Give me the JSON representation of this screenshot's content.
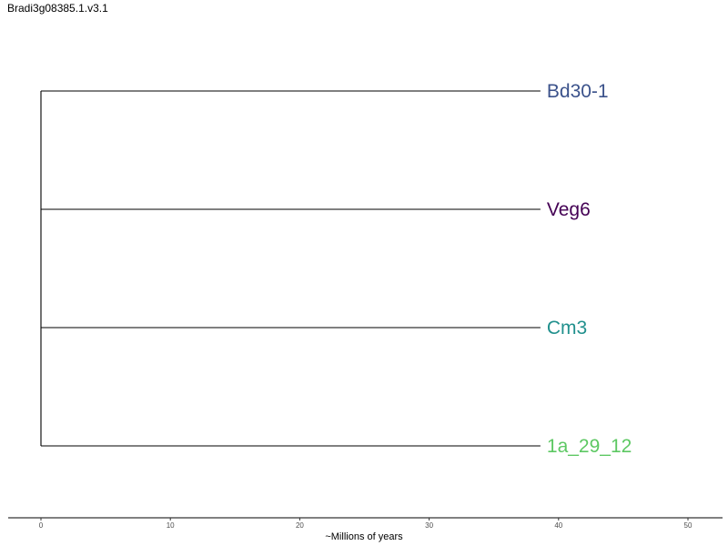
{
  "title": "Bradi3g08385.1.v3.1",
  "chart_data": {
    "type": "dendrogram",
    "title": "Bradi3g08385.1.v3.1",
    "xlabel": "~Millions of years",
    "ylabel": "",
    "xlim": [
      0,
      50
    ],
    "x_ticks": [
      0,
      10,
      20,
      30,
      40,
      50
    ],
    "x_tick_labels": [
      "0",
      "10",
      "20",
      "30",
      "40",
      "50"
    ],
    "root_x": 0,
    "tips": [
      {
        "label": "Bd30-1",
        "x": 38.6,
        "color": "#3b528b"
      },
      {
        "label": "Veg6",
        "x": 38.6,
        "color": "#440154"
      },
      {
        "label": "Cm3",
        "x": 38.6,
        "color": "#21908d"
      },
      {
        "label": "1a_29_12",
        "x": 38.6,
        "color": "#5dc863"
      }
    ],
    "branch_color": "#000000",
    "grid": false
  }
}
